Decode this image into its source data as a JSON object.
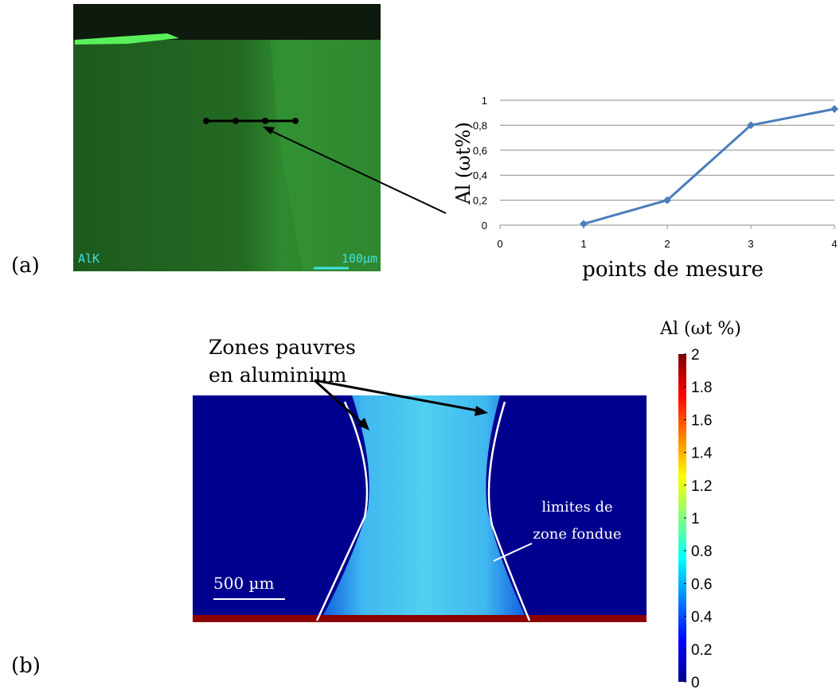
{
  "panel_a": {
    "label": "(a)",
    "image_labels": [
      "AlK",
      "100µm"
    ]
  },
  "chart_data": {
    "type": "line",
    "ylabel": "Al (ωt%)",
    "xlabel": "points de mesure",
    "x": [
      1,
      2,
      3,
      4
    ],
    "values": [
      0.01,
      0.2,
      0.8,
      0.93
    ],
    "color": "#4a7ebb",
    "xlim": [
      0,
      4
    ],
    "xticks": [
      0,
      1,
      2,
      3,
      4
    ],
    "ylim": [
      0,
      1
    ],
    "yticks": [
      0,
      {
        "value": 0.2,
        "label": "0,2"
      },
      {
        "value": 0.4,
        "label": "0,4"
      },
      {
        "value": 0.6,
        "label": "0,6"
      },
      {
        "value": 0.8,
        "label": "0,8"
      },
      1
    ],
    "grid": true
  },
  "panel_b": {
    "label": "(b)",
    "annotation": [
      "Zones pauvres",
      "en aluminium"
    ],
    "boundary_label": [
      "limites de",
      "zone fondue"
    ],
    "scale_bar": "500 µm",
    "colorbar": {
      "title": "Al (ωt %)",
      "ticks": [
        0,
        0.2,
        0.4,
        0.6,
        0.8,
        1,
        1.2,
        1.4,
        1.6,
        1.8,
        2
      ]
    }
  }
}
